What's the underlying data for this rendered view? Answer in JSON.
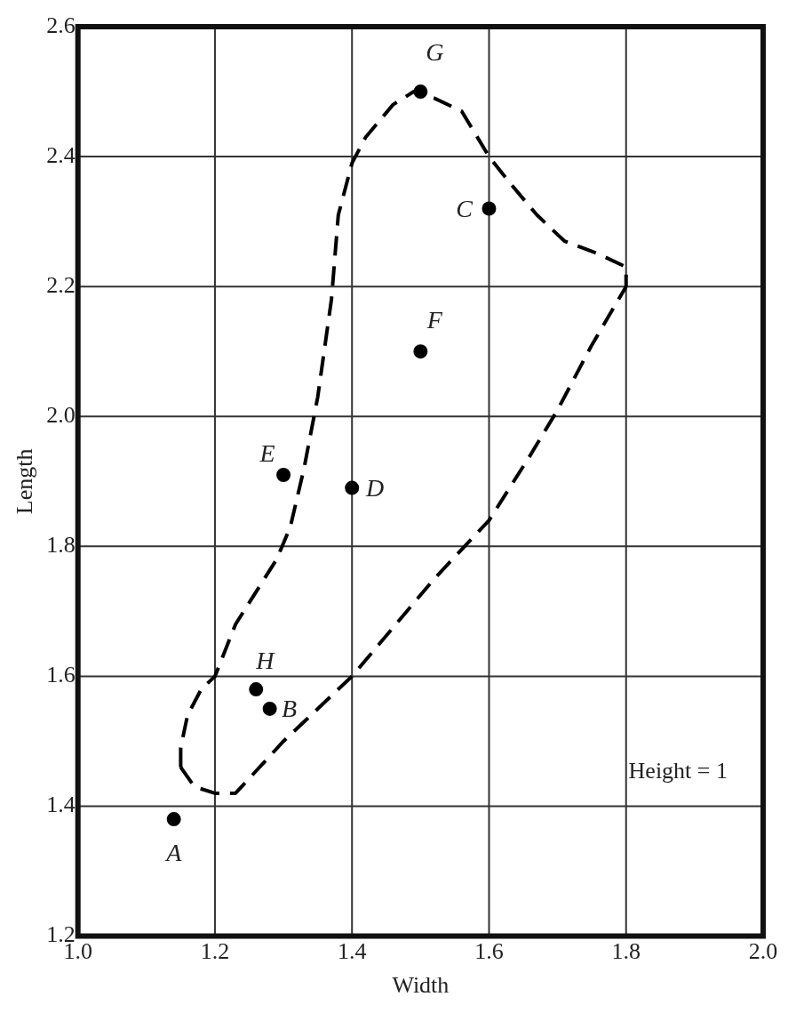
{
  "chart_data": {
    "type": "scatter",
    "xlabel": "Width",
    "ylabel": "Length",
    "xlim": [
      1.0,
      2.0
    ],
    "xticks": [
      {
        "value": 1.0,
        "label": "1.0"
      },
      1.2,
      1.4,
      1.6,
      1.8,
      {
        "value": 2.0,
        "label": "2.0"
      }
    ],
    "ylim": [
      1.2,
      2.6
    ],
    "yticks": [
      1.2,
      1.4,
      1.6,
      1.8,
      {
        "value": 2.0,
        "label": "2.0"
      },
      2.2,
      2.4,
      2.6
    ],
    "grid": true,
    "legend": false,
    "series": [
      {
        "color": "#000000",
        "marker": "circle",
        "x": [
          1.14,
          1.28,
          1.6,
          1.4,
          1.3,
          1.5,
          1.5,
          1.26
        ],
        "values": [
          1.38,
          1.55,
          2.32,
          1.89,
          1.91,
          2.1,
          2.5,
          1.58
        ]
      },
      {
        "type": "line",
        "color": "#000000",
        "marker": "none",
        "line_style": "dashed",
        "x": [
          1.15,
          1.15,
          1.16,
          1.18,
          1.2,
          1.23,
          1.29,
          1.31,
          1.33,
          1.35,
          1.37,
          1.38,
          1.4,
          1.42,
          1.46,
          1.49,
          1.52,
          1.56,
          1.6,
          1.63,
          1.67,
          1.71,
          1.76,
          1.8,
          1.8
        ],
        "values": [
          1.46,
          1.49,
          1.54,
          1.58,
          1.6,
          1.68,
          1.78,
          1.83,
          1.92,
          2.03,
          2.18,
          2.31,
          2.39,
          2.43,
          2.48,
          2.5,
          2.49,
          2.47,
          2.4,
          2.36,
          2.31,
          2.27,
          2.25,
          2.23,
          2.2
        ]
      },
      {
        "type": "line",
        "color": "#000000",
        "marker": "none",
        "line_style": "dashed",
        "x": [
          1.15,
          1.17,
          1.2,
          1.23,
          1.3,
          1.4,
          1.52,
          1.6,
          1.66,
          1.7,
          1.75,
          1.8
        ],
        "values": [
          1.46,
          1.43,
          1.42,
          1.42,
          1.5,
          1.6,
          1.75,
          1.84,
          1.94,
          2.01,
          2.11,
          2.2
        ]
      }
    ],
    "annotations": [
      {
        "text": "A",
        "x": 1.14,
        "y": 1.38
      },
      {
        "text": "B",
        "x": 1.28,
        "y": 1.55
      },
      {
        "text": "C",
        "x": 1.6,
        "y": 2.32
      },
      {
        "text": "D",
        "x": 1.4,
        "y": 1.89
      },
      {
        "text": "E",
        "x": 1.3,
        "y": 1.91
      },
      {
        "text": "F",
        "x": 1.5,
        "y": 2.1
      },
      {
        "text": "G",
        "x": 1.5,
        "y": 2.5
      },
      {
        "text": "H",
        "x": 1.26,
        "y": 1.58
      },
      "Height = 1"
    ]
  }
}
